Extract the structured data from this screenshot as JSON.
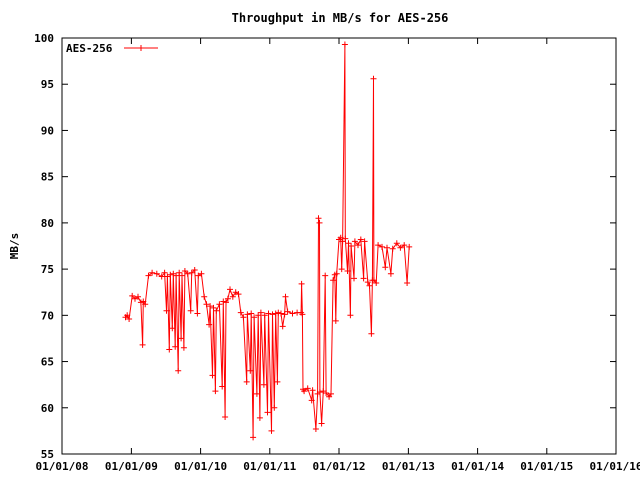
{
  "chart_data": {
    "type": "line",
    "title": "Throughput in MB/s for AES-256",
    "xlabel": "",
    "ylabel": "MB/s",
    "x_axis": {
      "kind": "date",
      "range": [
        "2008-01-01",
        "2016-01-01"
      ],
      "tick_labels": [
        "01/01/08",
        "01/01/09",
        "01/01/10",
        "01/01/11",
        "01/01/12",
        "01/01/13",
        "01/01/14",
        "01/01/15",
        "01/01/16"
      ]
    },
    "y_axis": {
      "range": [
        55,
        100
      ],
      "ticks": [
        55,
        60,
        65,
        70,
        75,
        80,
        85,
        90,
        95,
        100
      ]
    },
    "grid": false,
    "legend": {
      "position": "top-left",
      "entries": [
        "AES-256"
      ]
    },
    "series": [
      {
        "name": "AES-256",
        "color": "#ff0000",
        "marker": "plus",
        "points": [
          [
            "2008-12-01",
            69.8
          ],
          [
            "2008-12-10",
            70.0
          ],
          [
            "2008-12-20",
            69.6
          ],
          [
            "2009-01-05",
            72.1
          ],
          [
            "2009-01-20",
            71.8
          ],
          [
            "2009-02-05",
            72.0
          ],
          [
            "2009-02-20",
            71.4
          ],
          [
            "2009-03-01",
            66.8
          ],
          [
            "2009-03-05",
            71.5
          ],
          [
            "2009-03-15",
            71.2
          ],
          [
            "2009-04-01",
            74.3
          ],
          [
            "2009-04-20",
            74.6
          ],
          [
            "2009-05-15",
            74.5
          ],
          [
            "2009-06-10",
            74.2
          ],
          [
            "2009-06-25",
            74.6
          ],
          [
            "2009-07-05",
            70.5
          ],
          [
            "2009-07-10",
            74.2
          ],
          [
            "2009-07-20",
            66.3
          ],
          [
            "2009-07-25",
            74.4
          ],
          [
            "2009-08-05",
            68.6
          ],
          [
            "2009-08-10",
            74.5
          ],
          [
            "2009-08-20",
            66.6
          ],
          [
            "2009-08-25",
            74.3
          ],
          [
            "2009-09-05",
            64.0
          ],
          [
            "2009-09-10",
            74.6
          ],
          [
            "2009-09-20",
            67.5
          ],
          [
            "2009-09-25",
            74.3
          ],
          [
            "2009-10-05",
            66.5
          ],
          [
            "2009-10-10",
            74.8
          ],
          [
            "2009-10-25",
            74.5
          ],
          [
            "2009-11-10",
            70.5
          ],
          [
            "2009-11-15",
            74.6
          ],
          [
            "2009-12-01",
            74.9
          ],
          [
            "2009-12-15",
            70.2
          ],
          [
            "2009-12-20",
            74.3
          ],
          [
            "2010-01-05",
            74.5
          ],
          [
            "2010-01-20",
            72.0
          ],
          [
            "2010-02-01",
            71.2
          ],
          [
            "2010-02-15",
            69.0
          ],
          [
            "2010-02-20",
            71.0
          ],
          [
            "2010-03-05",
            63.5
          ],
          [
            "2010-03-10",
            70.8
          ],
          [
            "2010-03-20",
            61.8
          ],
          [
            "2010-03-25",
            70.5
          ],
          [
            "2010-04-10",
            71.2
          ],
          [
            "2010-04-25",
            62.3
          ],
          [
            "2010-05-01",
            71.5
          ],
          [
            "2010-05-10",
            59.0
          ],
          [
            "2010-05-15",
            71.4
          ],
          [
            "2010-05-25",
            71.8
          ],
          [
            "2010-06-05",
            72.8
          ],
          [
            "2010-06-20",
            72.0
          ],
          [
            "2010-07-05",
            72.5
          ],
          [
            "2010-07-20",
            72.3
          ],
          [
            "2010-08-01",
            70.3
          ],
          [
            "2010-08-15",
            69.8
          ],
          [
            "2010-09-01",
            62.8
          ],
          [
            "2010-09-05",
            70.1
          ],
          [
            "2010-09-20",
            64.0
          ],
          [
            "2010-09-25",
            70.2
          ],
          [
            "2010-10-05",
            56.8
          ],
          [
            "2010-10-10",
            69.8
          ],
          [
            "2010-10-25",
            61.5
          ],
          [
            "2010-11-01",
            70.0
          ],
          [
            "2010-11-10",
            58.9
          ],
          [
            "2010-11-15",
            70.3
          ],
          [
            "2010-12-01",
            62.5
          ],
          [
            "2010-12-05",
            70.0
          ],
          [
            "2010-12-20",
            59.5
          ],
          [
            "2010-12-25",
            70.2
          ],
          [
            "2011-01-10",
            57.5
          ],
          [
            "2011-01-15",
            70.1
          ],
          [
            "2011-01-25",
            60.0
          ],
          [
            "2011-02-01",
            70.2
          ],
          [
            "2011-02-10",
            62.8
          ],
          [
            "2011-02-15",
            70.3
          ],
          [
            "2011-03-01",
            70.2
          ],
          [
            "2011-03-10",
            68.8
          ],
          [
            "2011-03-20",
            70.1
          ],
          [
            "2011-03-25",
            72.0
          ],
          [
            "2011-04-05",
            70.4
          ],
          [
            "2011-05-01",
            70.2
          ],
          [
            "2011-05-25",
            70.3
          ],
          [
            "2011-06-15",
            70.3
          ],
          [
            "2011-06-18",
            73.4
          ],
          [
            "2011-06-22",
            70.1
          ],
          [
            "2011-06-25",
            62.0
          ],
          [
            "2011-07-01",
            61.8
          ],
          [
            "2011-07-20",
            62.1
          ],
          [
            "2011-08-10",
            60.8
          ],
          [
            "2011-08-15",
            61.9
          ],
          [
            "2011-09-01",
            57.7
          ],
          [
            "2011-09-10",
            61.5
          ],
          [
            "2011-09-15",
            80.5
          ],
          [
            "2011-09-20",
            80.0
          ],
          [
            "2011-09-22",
            61.7
          ],
          [
            "2011-10-01",
            58.3
          ],
          [
            "2011-10-10",
            61.8
          ],
          [
            "2011-10-20",
            74.3
          ],
          [
            "2011-10-25",
            61.6
          ],
          [
            "2011-11-10",
            61.2
          ],
          [
            "2011-11-20",
            61.5
          ],
          [
            "2011-12-01",
            73.8
          ],
          [
            "2011-12-10",
            74.4
          ],
          [
            "2011-12-15",
            69.4
          ],
          [
            "2011-12-20",
            74.5
          ],
          [
            "2012-01-01",
            78.2
          ],
          [
            "2012-01-10",
            78.4
          ],
          [
            "2012-01-15",
            75.0
          ],
          [
            "2012-01-20",
            78.0
          ],
          [
            "2012-02-01",
            99.3
          ],
          [
            "2012-02-03",
            78.3
          ],
          [
            "2012-02-15",
            74.8
          ],
          [
            "2012-02-20",
            77.8
          ],
          [
            "2012-03-01",
            70.0
          ],
          [
            "2012-03-05",
            77.5
          ],
          [
            "2012-03-20",
            74.0
          ],
          [
            "2012-03-25",
            78.0
          ],
          [
            "2012-04-10",
            77.6
          ],
          [
            "2012-04-25",
            78.2
          ],
          [
            "2012-05-10",
            74.0
          ],
          [
            "2012-05-15",
            78.0
          ],
          [
            "2012-06-01",
            73.6
          ],
          [
            "2012-06-10",
            73.2
          ],
          [
            "2012-06-20",
            68.0
          ],
          [
            "2012-06-25",
            73.8
          ],
          [
            "2012-07-01",
            95.6
          ],
          [
            "2012-07-03",
            73.8
          ],
          [
            "2012-07-15",
            73.5
          ],
          [
            "2012-07-25",
            77.6
          ],
          [
            "2012-08-15",
            77.4
          ],
          [
            "2012-09-01",
            75.2
          ],
          [
            "2012-09-10",
            77.3
          ],
          [
            "2012-10-01",
            74.5
          ],
          [
            "2012-10-10",
            77.2
          ],
          [
            "2012-11-01",
            77.8
          ],
          [
            "2012-11-20",
            77.3
          ],
          [
            "2012-12-10",
            77.6
          ],
          [
            "2012-12-25",
            73.5
          ],
          [
            "2013-01-05",
            77.4
          ]
        ]
      }
    ]
  }
}
